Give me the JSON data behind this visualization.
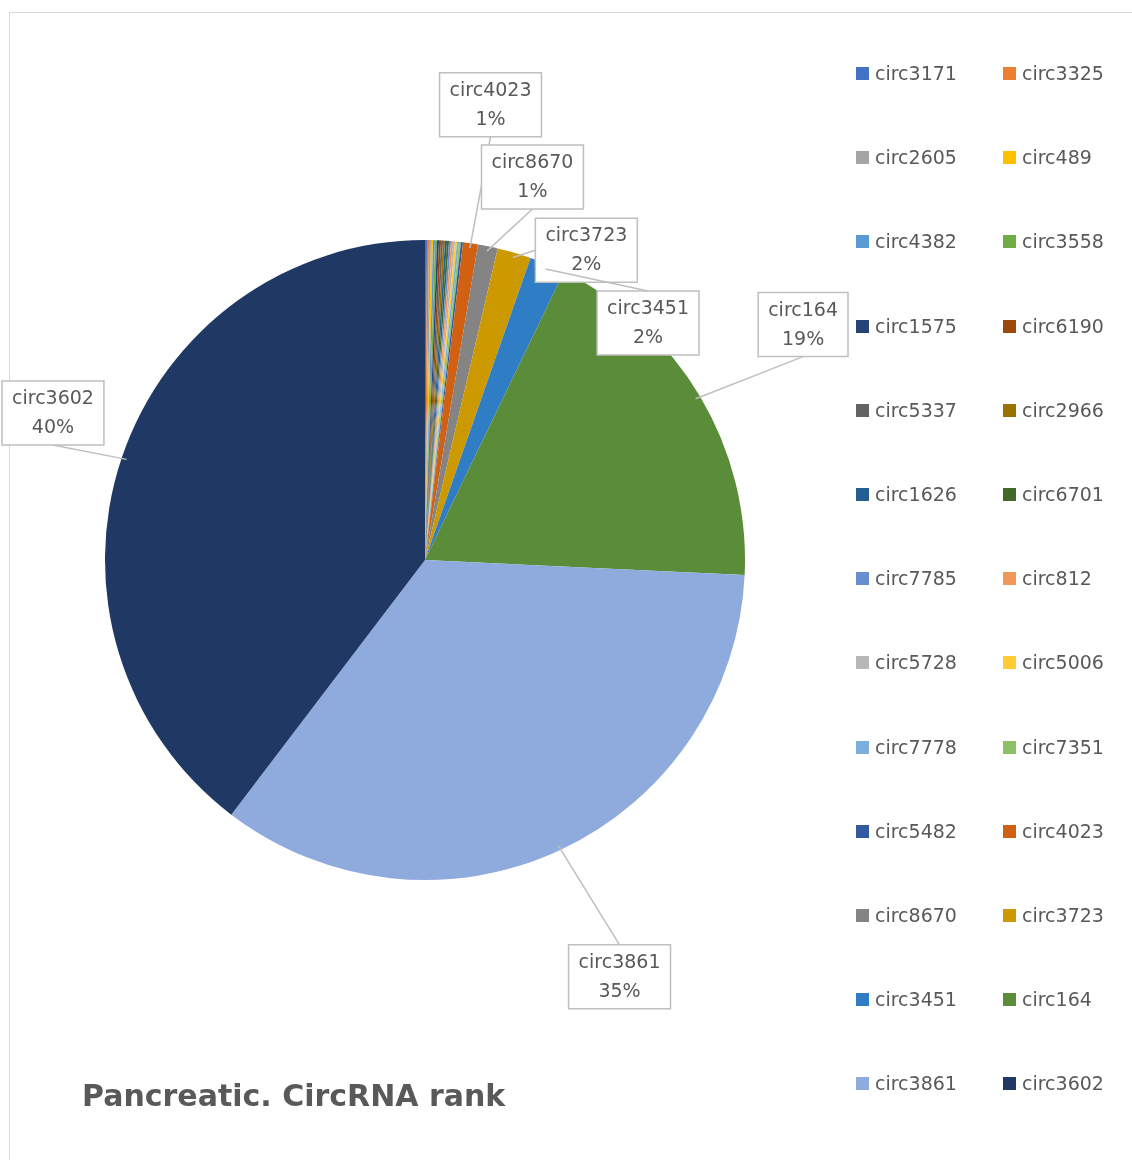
{
  "chart_data": {
    "type": "pie",
    "title": "Pancreatic. CircRNA rank",
    "categories": [
      "circ3171",
      "circ3325",
      "circ2605",
      "circ489",
      "circ4382",
      "circ3558",
      "circ1575",
      "circ6190",
      "circ5337",
      "circ2966",
      "circ1626",
      "circ6701",
      "circ7785",
      "circ812",
      "circ5728",
      "circ5006",
      "circ7778",
      "circ7351",
      "circ5482",
      "circ4023",
      "circ8670",
      "circ3723",
      "circ3451",
      "circ164",
      "circ3861",
      "circ3602"
    ],
    "values": [
      0.1,
      0.1,
      0.1,
      0.1,
      0.1,
      0.1,
      0.1,
      0.1,
      0.1,
      0.1,
      0.1,
      0.1,
      0.1,
      0.1,
      0.1,
      0.1,
      0.1,
      0.1,
      0.1,
      0.75,
      1.0,
      1.7,
      1.8,
      18.6,
      34.6,
      39.65
    ],
    "colors": [
      "#4472c4",
      "#ed7d31",
      "#a5a5a5",
      "#ffc000",
      "#5b9bd5",
      "#70ad47",
      "#264478",
      "#9e480e",
      "#636363",
      "#997300",
      "#255e91",
      "#43682b",
      "#698ed0",
      "#f1975a",
      "#b7b7b7",
      "#ffcd33",
      "#7cafdd",
      "#8cc168",
      "#335aa1",
      "#d26012",
      "#848484",
      "#cc9a00",
      "#2e7dc5",
      "#5b8c3a",
      "#8faadc",
      "#203864"
    ],
    "value_labels": [
      null,
      null,
      null,
      null,
      null,
      null,
      null,
      null,
      null,
      null,
      null,
      null,
      null,
      null,
      null,
      null,
      null,
      null,
      null,
      "1%",
      "1%",
      "2%",
      "2%",
      "19%",
      "35%",
      "40%"
    ],
    "legend": "right"
  }
}
